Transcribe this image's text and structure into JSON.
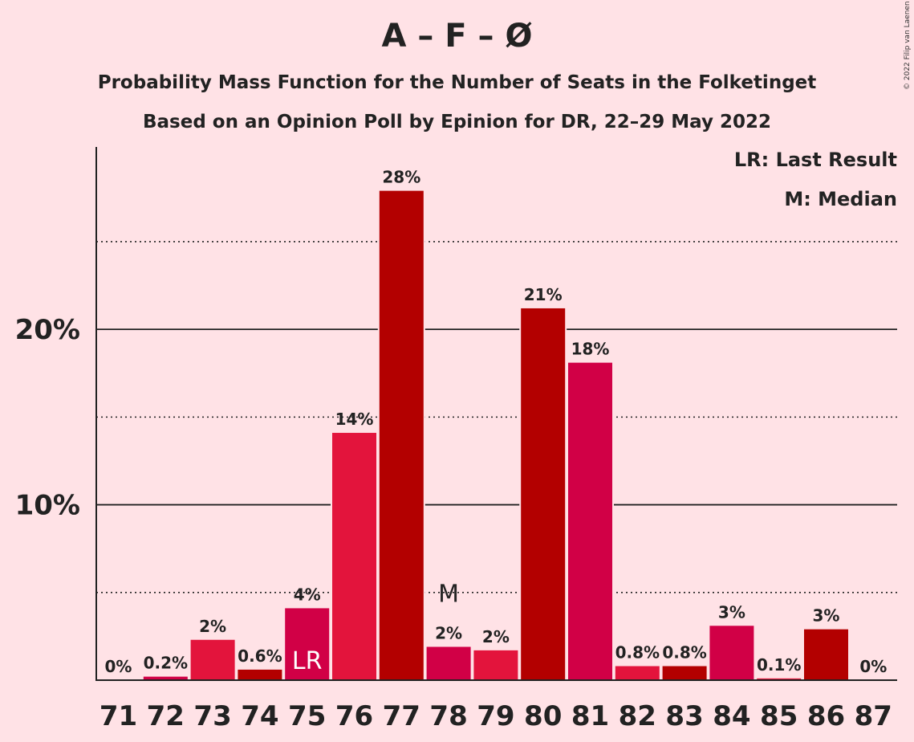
{
  "title": "A – F – Ø",
  "subtitle_1": "Probability Mass Function for the Number of Seats in the Folketinget",
  "subtitle_2": "Based on an Opinion Poll by Epinion for DR, 22–29 May 2022",
  "copyright": "© 2022 Filip van Laenen",
  "legend": {
    "last_result": "LR: Last Result",
    "median": "M: Median"
  },
  "colors": {
    "background": "#FFE2E6",
    "bar_palette": [
      "#B30000",
      "#D10046",
      "#E3143C"
    ]
  },
  "chart_data": {
    "type": "bar",
    "categories": [
      "71",
      "72",
      "73",
      "74",
      "75",
      "76",
      "77",
      "78",
      "79",
      "80",
      "81",
      "82",
      "83",
      "84",
      "85",
      "86",
      "87"
    ],
    "values": [
      0,
      0.2,
      2.3,
      0.6,
      4.1,
      14.1,
      27.9,
      1.9,
      1.7,
      21.2,
      18.1,
      0.8,
      0.8,
      3.1,
      0.1,
      2.9,
      0
    ],
    "data_labels": [
      "0%",
      "0.2%",
      "2%",
      "0.6%",
      "4%",
      "14%",
      "28%",
      "2%",
      "2%",
      "21%",
      "18%",
      "0.8%",
      "0.8%",
      "3%",
      "0.1%",
      "3%",
      "0%"
    ],
    "y_ticks": [
      {
        "value": 10,
        "label": "10%"
      },
      {
        "value": 20,
        "label": "20%"
      }
    ],
    "minor_grid": [
      5,
      15,
      25
    ],
    "ylim": [
      0,
      30.4
    ],
    "last_result": {
      "category": "75",
      "label": "LR"
    },
    "median": {
      "category": "78",
      "label": "M"
    },
    "grid": true
  }
}
